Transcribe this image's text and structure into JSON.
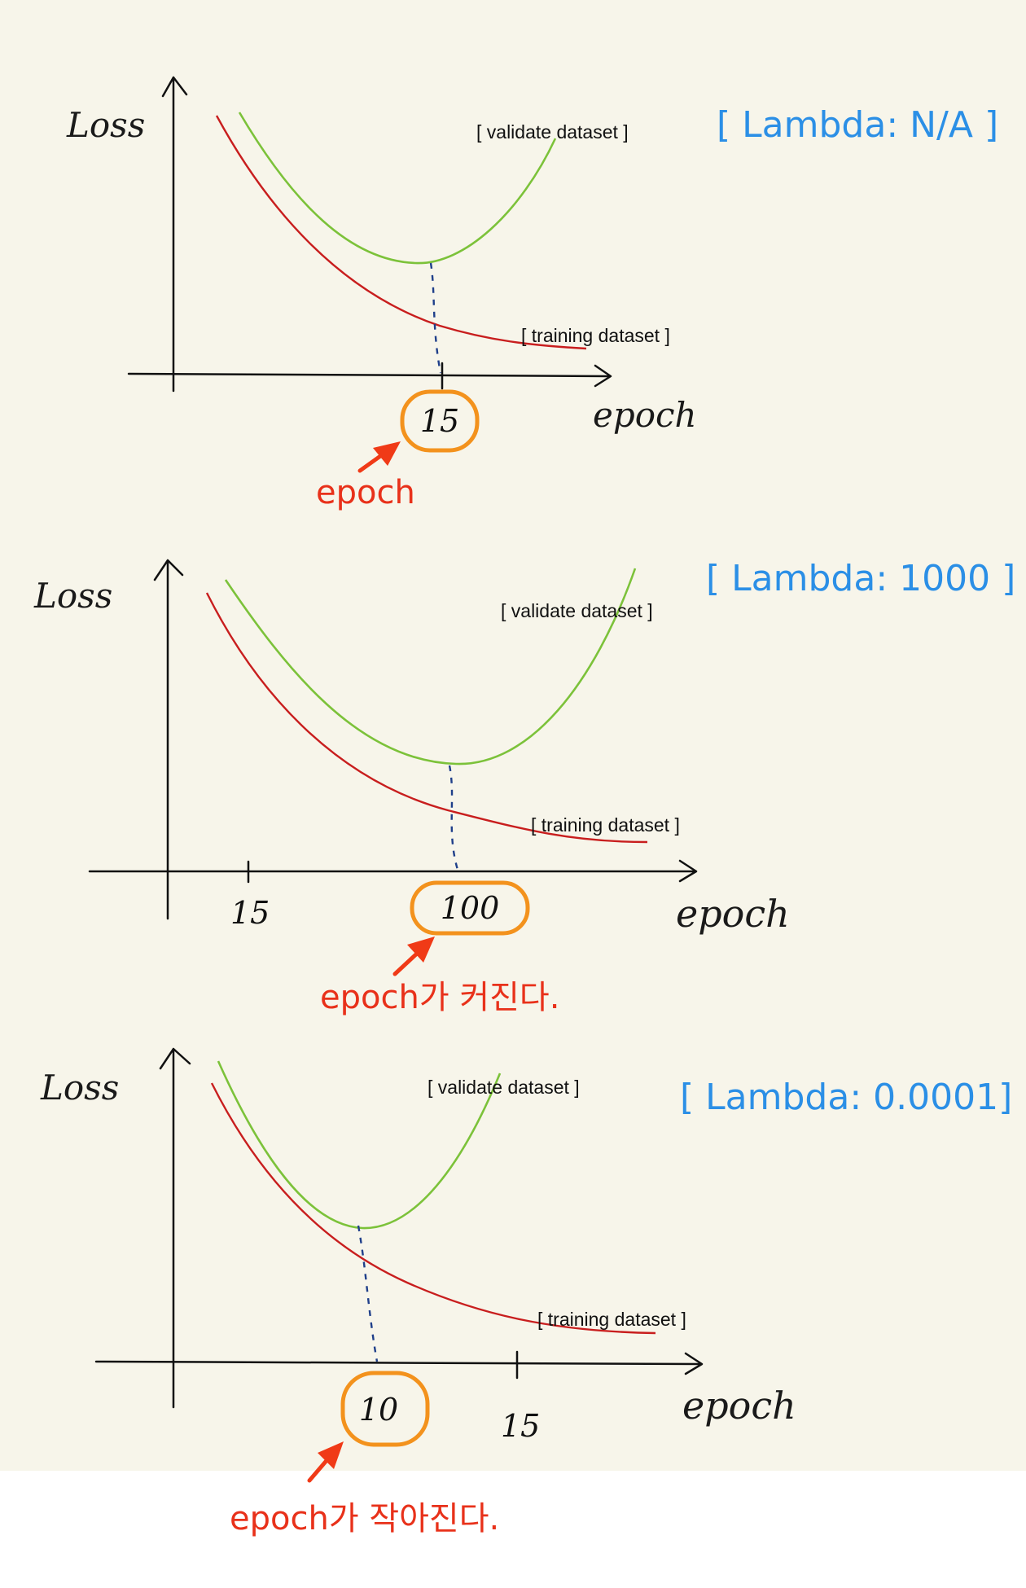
{
  "panels": [
    {
      "lambda_label": "[ Lambda: N/A ]",
      "y_label": "Loss",
      "x_label": "epoch",
      "validate_label": "[ validate dataset ]",
      "training_label": "[ training dataset ]",
      "highlight_value": "15",
      "tick_value": "",
      "annotation": "epoch"
    },
    {
      "lambda_label": "[ Lambda: 1000 ]",
      "y_label": "Loss",
      "x_label": "epoch",
      "validate_label": "[ validate dataset ]",
      "training_label": "[ training dataset ]",
      "highlight_value": "100",
      "tick_value": "15",
      "annotation": "epoch가 커진다."
    },
    {
      "lambda_label": "[ Lambda: 0.0001]",
      "y_label": "Loss",
      "x_label": "epoch",
      "validate_label": "[ validate dataset ]",
      "training_label": "[ training dataset ]",
      "highlight_value": "10",
      "tick_value": "15",
      "annotation": "epoch가 작아진다."
    }
  ],
  "colors": {
    "validate_curve": "#7cc23a",
    "training_curve": "#c81e1e",
    "lambda_text": "#2b8fe6",
    "annotation": "#e8311a",
    "highlight": "#f3921d",
    "dashed_line": "#1f3f8a"
  }
}
